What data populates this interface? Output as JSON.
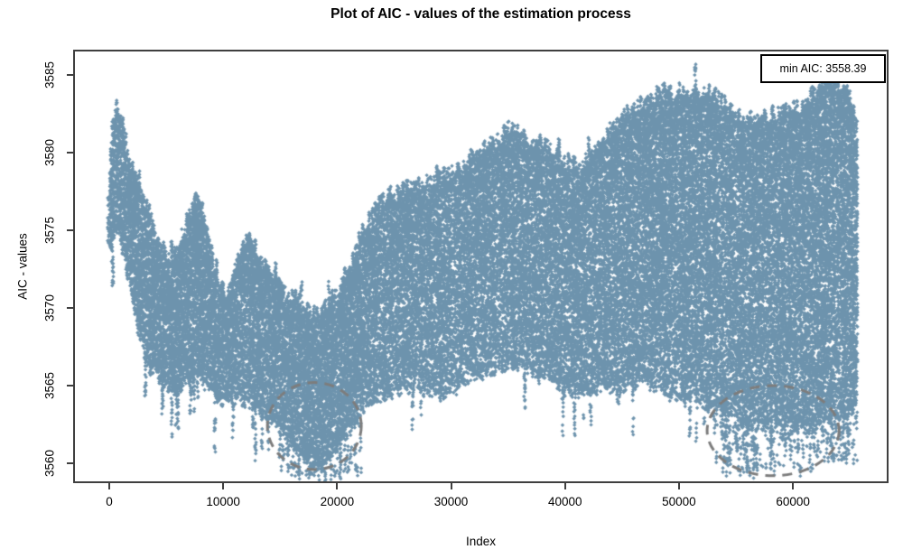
{
  "chart_data": {
    "type": "scatter",
    "title": "Plot of AIC - values of the estimation process",
    "xlabel": "Index",
    "ylabel": "AIC - values",
    "x_ticks": [
      0,
      10000,
      20000,
      30000,
      40000,
      50000,
      60000
    ],
    "y_ticks": [
      3560,
      3565,
      3570,
      3575,
      3580,
      3585
    ],
    "xlim": [
      -1800,
      68200
    ],
    "ylim": [
      3558.8,
      3586.5
    ],
    "grid": false,
    "index_range": [
      0,
      65600
    ],
    "point_shape": "diamond",
    "point_color": "#6d93ad",
    "axis_color": "#3f3f3f",
    "annotation_color": "#7d7d7d",
    "legend": {
      "label": "min AIC: 3558.39",
      "position": "topright"
    },
    "min_aic": 3558.39,
    "envelope": {
      "index": [
        0,
        250,
        700,
        1200,
        1800,
        2600,
        3600,
        4600,
        5600,
        6600,
        7600,
        8400,
        9400,
        10400,
        11400,
        12300,
        13300,
        14300,
        15400,
        16500,
        17600,
        18800,
        20000,
        21200,
        22400,
        23600,
        25000,
        27000,
        29000,
        31000,
        33000,
        35200,
        36800,
        38500,
        40000,
        41500,
        43000,
        45000,
        47000,
        49000,
        50500,
        52000,
        53500,
        55500,
        57200,
        59000,
        61000,
        63000,
        64500,
        65600
      ],
      "lower": [
        3573.0,
        3573.5,
        3574.5,
        3573.0,
        3570.5,
        3567.5,
        3565.5,
        3565.0,
        3564.0,
        3564.5,
        3565.5,
        3564.5,
        3563.5,
        3563.3,
        3563.3,
        3563.0,
        3562.5,
        3562.0,
        3561.0,
        3560.3,
        3559.2,
        3559.6,
        3561.0,
        3562.0,
        3563.2,
        3563.8,
        3564.2,
        3564.4,
        3564.0,
        3564.8,
        3565.4,
        3566.0,
        3565.2,
        3564.6,
        3564.0,
        3563.6,
        3564.0,
        3564.6,
        3564.8,
        3564.0,
        3563.6,
        3563.0,
        3562.8,
        3562.4,
        3562.2,
        3562.4,
        3562.2,
        3562.2,
        3562.4,
        3563.0
      ],
      "upper": [
        3577.5,
        3582.5,
        3583.4,
        3582.0,
        3580.0,
        3578.5,
        3576.5,
        3574.5,
        3573.0,
        3575.5,
        3577.6,
        3576.5,
        3572.5,
        3571.0,
        3573.5,
        3575.3,
        3573.5,
        3572.3,
        3571.6,
        3571.0,
        3570.4,
        3571.0,
        3572.0,
        3573.5,
        3576.2,
        3577.6,
        3578.2,
        3578.6,
        3579.2,
        3580.0,
        3580.8,
        3582.4,
        3581.0,
        3580.6,
        3579.8,
        3579.4,
        3581.0,
        3582.8,
        3584.0,
        3584.6,
        3584.8,
        3584.4,
        3584.0,
        3583.2,
        3583.0,
        3583.6,
        3584.2,
        3585.4,
        3584.6,
        3583.0
      ]
    },
    "extra_sparse": [
      {
        "index_range": [
          14800,
          21800
        ],
        "aic_range": [
          3559.2,
          3561.2
        ],
        "n": 80
      },
      {
        "index_range": [
          53200,
          61800
        ],
        "aic_range": [
          3559.4,
          3562.8
        ],
        "n": 150
      },
      {
        "index_range": [
          61800,
          65600
        ],
        "aic_range": [
          3560.2,
          3562.6
        ],
        "n": 60
      }
    ],
    "circles": [
      {
        "cx": 18000,
        "cy": 3562.4,
        "rx": 4120,
        "ry": 2.8
      },
      {
        "cx": 58260,
        "cy": 3562.1,
        "rx": 5790,
        "ry": 2.9
      }
    ]
  }
}
